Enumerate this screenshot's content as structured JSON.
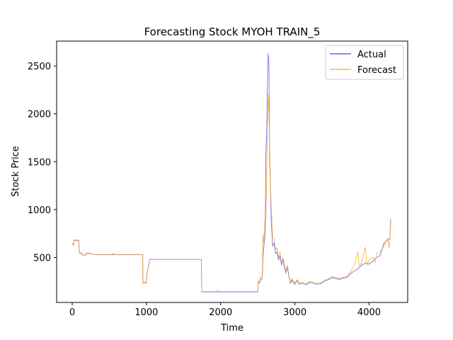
{
  "chart_data": {
    "type": "line",
    "title": "Forecasting Stock MYOH TRAIN_5",
    "xlabel": "Time",
    "ylabel": "Stock Price",
    "xlim": [
      -210,
      4520
    ],
    "ylim": [
      30,
      2760
    ],
    "xticks": [
      0,
      1000,
      2000,
      3000,
      4000
    ],
    "yticks": [
      500,
      1000,
      1500,
      2000,
      2500
    ],
    "grid": false,
    "legend_position": "top-right",
    "series": [
      {
        "name": "Actual",
        "color": "#4444ff",
        "points": [
          [
            0,
            650
          ],
          [
            20,
            630
          ],
          [
            25,
            680
          ],
          [
            90,
            680
          ],
          [
            95,
            550
          ],
          [
            130,
            545
          ],
          [
            140,
            525
          ],
          [
            180,
            525
          ],
          [
            190,
            545
          ],
          [
            230,
            545
          ],
          [
            240,
            540
          ],
          [
            280,
            535
          ],
          [
            300,
            530
          ],
          [
            550,
            530
          ],
          [
            552,
            540
          ],
          [
            560,
            530
          ],
          [
            950,
            530
          ],
          [
            952,
            235
          ],
          [
            1000,
            235
          ],
          [
            1005,
            310
          ],
          [
            1020,
            380
          ],
          [
            1040,
            470
          ],
          [
            1045,
            480
          ],
          [
            1740,
            480
          ],
          [
            1745,
            140
          ],
          [
            2000,
            140
          ],
          [
            2500,
            140
          ],
          [
            2505,
            250
          ],
          [
            2520,
            230
          ],
          [
            2540,
            270
          ],
          [
            2560,
            280
          ],
          [
            2570,
            500
          ],
          [
            2580,
            600
          ],
          [
            2600,
            750
          ],
          [
            2610,
            1600
          ],
          [
            2620,
            1800
          ],
          [
            2630,
            2300
          ],
          [
            2640,
            2630
          ],
          [
            2650,
            2550
          ],
          [
            2660,
            1500
          ],
          [
            2670,
            1250
          ],
          [
            2680,
            900
          ],
          [
            2700,
            620
          ],
          [
            2720,
            650
          ],
          [
            2740,
            540
          ],
          [
            2760,
            560
          ],
          [
            2780,
            470
          ],
          [
            2800,
            520
          ],
          [
            2820,
            420
          ],
          [
            2840,
            480
          ],
          [
            2860,
            390
          ],
          [
            2880,
            340
          ],
          [
            2900,
            400
          ],
          [
            2920,
            300
          ],
          [
            2940,
            230
          ],
          [
            2960,
            260
          ],
          [
            2980,
            240
          ],
          [
            3000,
            220
          ],
          [
            3030,
            260
          ],
          [
            3060,
            220
          ],
          [
            3100,
            230
          ],
          [
            3150,
            215
          ],
          [
            3200,
            240
          ],
          [
            3250,
            230
          ],
          [
            3300,
            220
          ],
          [
            3350,
            225
          ],
          [
            3400,
            255
          ],
          [
            3450,
            265
          ],
          [
            3500,
            290
          ],
          [
            3550,
            280
          ],
          [
            3600,
            270
          ],
          [
            3650,
            285
          ],
          [
            3700,
            290
          ],
          [
            3750,
            330
          ],
          [
            3800,
            360
          ],
          [
            3850,
            380
          ],
          [
            3900,
            420
          ],
          [
            3950,
            440
          ],
          [
            4000,
            430
          ],
          [
            4050,
            460
          ],
          [
            4100,
            500
          ],
          [
            4150,
            520
          ],
          [
            4200,
            650
          ],
          [
            4250,
            680
          ],
          [
            4280,
            700
          ],
          [
            4290,
            900
          ]
        ]
      },
      {
        "name": "Forecast",
        "color": "#ffaa22",
        "points": [
          [
            0,
            645
          ],
          [
            20,
            625
          ],
          [
            25,
            675
          ],
          [
            90,
            675
          ],
          [
            95,
            545
          ],
          [
            130,
            540
          ],
          [
            140,
            522
          ],
          [
            180,
            522
          ],
          [
            190,
            540
          ],
          [
            230,
            540
          ],
          [
            240,
            538
          ],
          [
            280,
            532
          ],
          [
            300,
            528
          ],
          [
            550,
            528
          ],
          [
            560,
            528
          ],
          [
            950,
            528
          ],
          [
            952,
            240
          ],
          [
            1000,
            240
          ],
          [
            1005,
            305
          ],
          [
            1020,
            375
          ],
          [
            1040,
            465
          ],
          [
            1045,
            478
          ],
          [
            1740,
            478
          ],
          [
            1745,
            145
          ],
          [
            1950,
            145
          ],
          [
            1960,
            160
          ],
          [
            1975,
            145
          ],
          [
            2000,
            145
          ],
          [
            2500,
            145
          ],
          [
            2505,
            245
          ],
          [
            2520,
            235
          ],
          [
            2540,
            300
          ],
          [
            2560,
            290
          ],
          [
            2570,
            750
          ],
          [
            2580,
            640
          ],
          [
            2600,
            950
          ],
          [
            2610,
            900
          ],
          [
            2620,
            1400
          ],
          [
            2630,
            1900
          ],
          [
            2640,
            2200
          ],
          [
            2650,
            2000
          ],
          [
            2660,
            1700
          ],
          [
            2670,
            1300
          ],
          [
            2680,
            1050
          ],
          [
            2700,
            700
          ],
          [
            2720,
            700
          ],
          [
            2740,
            580
          ],
          [
            2760,
            600
          ],
          [
            2780,
            500
          ],
          [
            2800,
            560
          ],
          [
            2820,
            450
          ],
          [
            2840,
            500
          ],
          [
            2860,
            420
          ],
          [
            2880,
            360
          ],
          [
            2900,
            420
          ],
          [
            2920,
            320
          ],
          [
            2940,
            240
          ],
          [
            2960,
            280
          ],
          [
            2980,
            250
          ],
          [
            3000,
            230
          ],
          [
            3030,
            270
          ],
          [
            3060,
            230
          ],
          [
            3100,
            240
          ],
          [
            3150,
            225
          ],
          [
            3200,
            250
          ],
          [
            3250,
            240
          ],
          [
            3300,
            230
          ],
          [
            3350,
            235
          ],
          [
            3400,
            265
          ],
          [
            3450,
            275
          ],
          [
            3500,
            300
          ],
          [
            3550,
            290
          ],
          [
            3600,
            280
          ],
          [
            3650,
            295
          ],
          [
            3700,
            300
          ],
          [
            3750,
            350
          ],
          [
            3800,
            420
          ],
          [
            3850,
            560
          ],
          [
            3870,
            400
          ],
          [
            3900,
            450
          ],
          [
            3950,
            610
          ],
          [
            3970,
            420
          ],
          [
            4000,
            480
          ],
          [
            4050,
            500
          ],
          [
            4080,
            450
          ],
          [
            4100,
            540
          ],
          [
            4150,
            560
          ],
          [
            4200,
            620
          ],
          [
            4250,
            700
          ],
          [
            4270,
            600
          ],
          [
            4280,
            690
          ],
          [
            4290,
            860
          ]
        ]
      }
    ]
  }
}
